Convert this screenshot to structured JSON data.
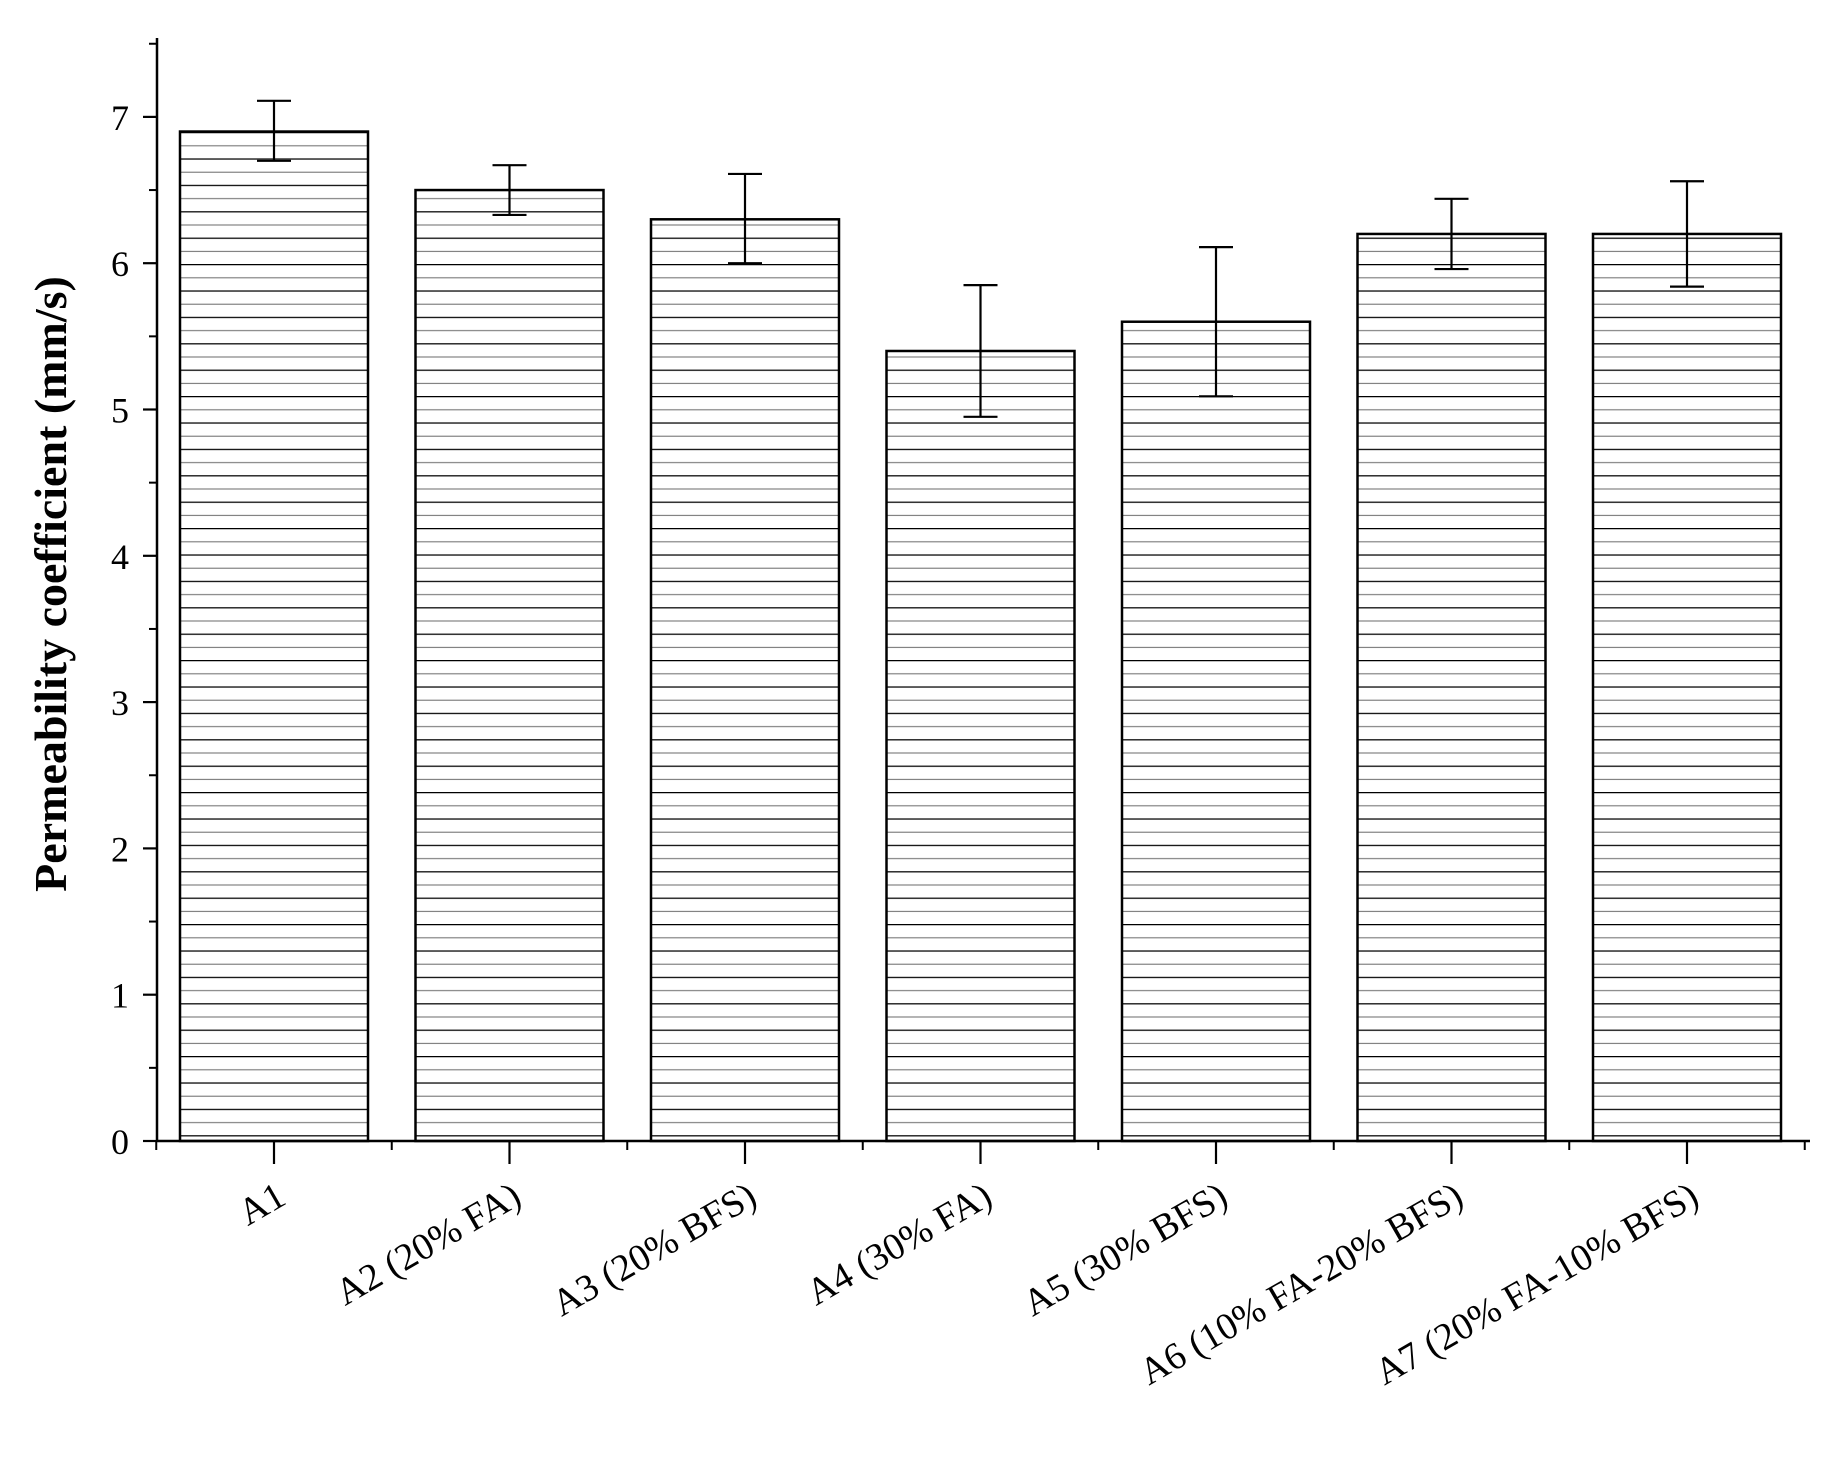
{
  "chart_data": {
    "type": "bar",
    "title": "",
    "xlabel": "",
    "ylabel": "Permeability coefficient (mm/s)",
    "ylim": [
      0,
      7.5
    ],
    "yticks": [
      "0",
      "1",
      "2",
      "3",
      "4",
      "5",
      "6",
      "7"
    ],
    "categories": [
      "A1",
      "A2 (20% FA)",
      "A3 (20% BFS)",
      "A4 (30% FA)",
      "A5 (30% BFS)",
      "A6 (10% FA-20% BFS)",
      "A7 (20% FA-10% BFS)"
    ],
    "values": [
      6.9,
      6.5,
      6.3,
      5.4,
      5.6,
      6.2,
      6.2
    ],
    "error_low": [
      6.7,
      6.33,
      6.0,
      4.95,
      5.09,
      5.96,
      5.84
    ],
    "error_high": [
      7.11,
      6.67,
      6.61,
      5.85,
      6.11,
      6.44,
      6.56
    ],
    "bar_fill": "#ffffff",
    "bar_pattern": "horizontal-lines",
    "grid": false,
    "legend": "none"
  }
}
